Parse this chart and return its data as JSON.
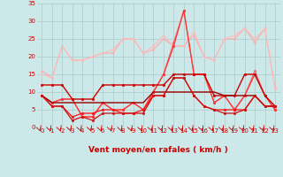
{
  "xlabel": "Vent moyen/en rafales ( km/h )",
  "background_color": "#cce8e8",
  "grid_color": "#aacccc",
  "xlim": [
    -0.5,
    23.5
  ],
  "ylim": [
    0,
    35
  ],
  "yticks": [
    0,
    5,
    10,
    15,
    20,
    25,
    30,
    35
  ],
  "xticks": [
    0,
    1,
    2,
    3,
    4,
    5,
    6,
    7,
    8,
    9,
    10,
    11,
    12,
    13,
    14,
    15,
    16,
    17,
    18,
    19,
    20,
    21,
    22,
    23
  ],
  "lines": [
    {
      "x": [
        0,
        1,
        2,
        3,
        4,
        5,
        6,
        7,
        8,
        9,
        10,
        11,
        12,
        13,
        14,
        15,
        16,
        17,
        18,
        19,
        20,
        21,
        22,
        23
      ],
      "y": [
        16,
        14,
        23,
        19,
        19,
        20,
        21,
        21,
        25,
        25,
        21,
        22,
        25,
        23,
        23,
        26,
        20,
        19,
        25,
        25,
        28,
        24,
        28,
        11
      ],
      "color": "#ffaaaa",
      "lw": 0.8,
      "marker": "o",
      "ms": 1.5
    },
    {
      "x": [
        0,
        1,
        2,
        3,
        4,
        5,
        6,
        7,
        8,
        9,
        10,
        11,
        12,
        13,
        14,
        15,
        16,
        17,
        18,
        19,
        20,
        21,
        22,
        23
      ],
      "y": [
        15,
        14,
        23,
        19,
        19,
        20,
        21,
        22,
        25,
        25,
        21,
        23,
        26,
        23,
        23,
        27,
        20,
        19,
        25,
        26,
        28,
        25,
        28,
        11
      ],
      "color": "#ffbbbb",
      "lw": 0.8,
      "marker": "o",
      "ms": 1.5
    },
    {
      "x": [
        0,
        1,
        2,
        3,
        4,
        5,
        6,
        7,
        8,
        9,
        10,
        11,
        12,
        13,
        14,
        15,
        16,
        17,
        18,
        19,
        20,
        21,
        22,
        23
      ],
      "y": [
        9,
        7,
        8,
        8,
        3,
        3,
        7,
        5,
        5,
        7,
        5,
        10,
        15,
        24,
        33,
        15,
        15,
        7,
        9,
        5,
        9,
        16,
        9,
        5
      ],
      "color": "#ff6666",
      "lw": 0.9,
      "marker": "o",
      "ms": 2
    },
    {
      "x": [
        0,
        1,
        2,
        3,
        4,
        5,
        6,
        7,
        8,
        9,
        10,
        11,
        12,
        13,
        14,
        15,
        16,
        17,
        18,
        19,
        20,
        21,
        22,
        23
      ],
      "y": [
        9,
        7,
        8,
        8,
        3,
        3,
        7,
        5,
        5,
        7,
        5,
        10,
        15,
        23,
        33,
        15,
        15,
        7,
        9,
        5,
        9,
        15,
        9,
        5
      ],
      "color": "#ff3333",
      "lw": 0.9,
      "marker": "o",
      "ms": 2
    },
    {
      "x": [
        0,
        1,
        2,
        3,
        4,
        5,
        6,
        7,
        8,
        9,
        10,
        11,
        12,
        13,
        14,
        15,
        16,
        17,
        18,
        19,
        20,
        21,
        22,
        23
      ],
      "y": [
        12,
        12,
        12,
        8,
        8,
        8,
        12,
        12,
        12,
        12,
        12,
        12,
        12,
        15,
        15,
        15,
        15,
        9,
        9,
        9,
        15,
        15,
        9,
        6
      ],
      "color": "#cc0000",
      "lw": 1.0,
      "marker": "o",
      "ms": 2
    },
    {
      "x": [
        0,
        1,
        2,
        3,
        4,
        5,
        6,
        7,
        8,
        9,
        10,
        11,
        12,
        13,
        14,
        15,
        16,
        17,
        18,
        19,
        20,
        21,
        22,
        23
      ],
      "y": [
        9,
        7,
        7,
        7,
        7,
        7,
        7,
        7,
        7,
        7,
        7,
        10,
        10,
        10,
        10,
        10,
        10,
        10,
        9,
        9,
        9,
        9,
        6,
        6
      ],
      "color": "#990000",
      "lw": 1.0,
      "marker": null,
      "ms": 0
    },
    {
      "x": [
        0,
        1,
        2,
        3,
        4,
        5,
        6,
        7,
        8,
        9,
        10,
        11,
        12,
        13,
        14,
        15,
        16,
        17,
        18,
        19,
        20,
        21,
        22,
        23
      ],
      "y": [
        9,
        6,
        6,
        3,
        4,
        4,
        5,
        5,
        4,
        4,
        5,
        9,
        9,
        14,
        14,
        9,
        6,
        5,
        5,
        5,
        5,
        9,
        6,
        6
      ],
      "color": "#ff1111",
      "lw": 0.9,
      "marker": "o",
      "ms": 2
    },
    {
      "x": [
        0,
        1,
        2,
        3,
        4,
        5,
        6,
        7,
        8,
        9,
        10,
        11,
        12,
        13,
        14,
        15,
        16,
        17,
        18,
        19,
        20,
        21,
        22,
        23
      ],
      "y": [
        9,
        6,
        6,
        2,
        3,
        2,
        4,
        4,
        4,
        4,
        4,
        9,
        9,
        14,
        14,
        9,
        6,
        5,
        4,
        4,
        5,
        9,
        6,
        6
      ],
      "color": "#cc1111",
      "lw": 0.9,
      "marker": "o",
      "ms": 2
    }
  ],
  "arrow_color": "#cc0000",
  "tick_color": "#cc0000",
  "tick_fontsize": 5,
  "xlabel_fontsize": 6.5
}
